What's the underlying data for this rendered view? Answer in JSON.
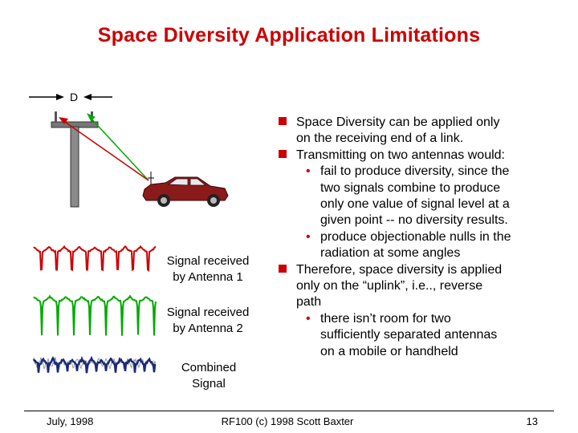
{
  "title": "Space Diversity Application Limitations",
  "diagram": {
    "spacing_label": "D",
    "signal1_label_line1": "Signal received",
    "signal1_label_line2": "by Antenna 1",
    "signal2_label_line1": "Signal received",
    "signal2_label_line2": "by Antenna 2",
    "combined_label_line1": "Combined",
    "combined_label_line2": "Signal",
    "colors": {
      "antenna1_signal": "#cc0000",
      "antenna2_signal": "#00aa00",
      "combined_signal": "#1a2a7a",
      "raw_signal": "#999999",
      "car": "#8b1a1a"
    }
  },
  "bullets": [
    {
      "level": 1,
      "lines": [
        "Space Diversity can be applied only",
        "on the receiving end of a link."
      ]
    },
    {
      "level": 1,
      "lines": [
        "Transmitting on two antennas would:"
      ]
    },
    {
      "level": 2,
      "lines": [
        "fail to produce diversity, since the",
        "two signals combine to produce",
        "only one value of signal level at a",
        "given point -- no diversity results."
      ]
    },
    {
      "level": 2,
      "lines": [
        "produce objectionable nulls in the",
        "radiation at some angles"
      ]
    },
    {
      "level": 1,
      "lines": [
        "Therefore, space diversity is applied",
        "only on the “uplink”, i.e.., reverse",
        "path"
      ]
    },
    {
      "level": 2,
      "lines": [
        "there isn’t room for two",
        "sufficiently separated antennas",
        "on a mobile or handheld"
      ]
    }
  ],
  "footer": {
    "date": "July, 1998",
    "credit": "RF100 (c) 1998 Scott Baxter",
    "page": "13"
  }
}
